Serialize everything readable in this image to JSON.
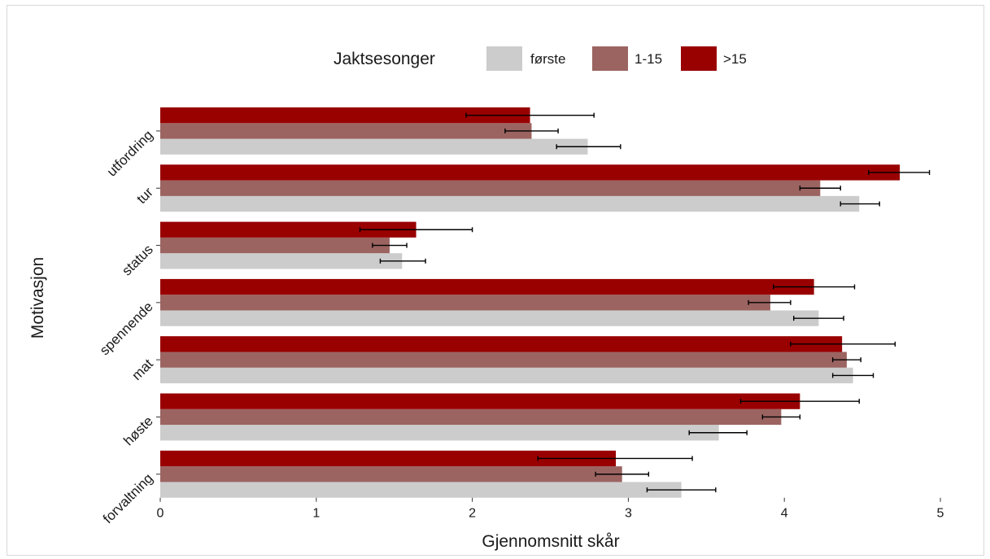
{
  "chart_data": {
    "type": "bar",
    "orientation": "horizontal",
    "xlabel": "Gjennomsnitt skår",
    "ylabel": "Motivasjon",
    "xlim": [
      0,
      5
    ],
    "xticks": [
      "0",
      "1",
      "2",
      "3",
      "4",
      "5"
    ],
    "grid": false,
    "legend": {
      "title": "Jaktsesonger",
      "placement": "top"
    },
    "categories": [
      "utfordring",
      "tur",
      "status",
      "spennende",
      "mat",
      "høste",
      "forvaltning"
    ],
    "series": [
      {
        "name": "første",
        "color": "#cccccc",
        "values": [
          2.74,
          4.48,
          1.55,
          4.22,
          4.44,
          3.58,
          3.34
        ],
        "err_low": [
          2.54,
          4.36,
          1.41,
          4.06,
          4.31,
          3.39,
          3.12
        ],
        "err_high": [
          2.95,
          4.61,
          1.7,
          4.38,
          4.57,
          3.76,
          3.56
        ]
      },
      {
        "name": "1-15",
        "color": "#9b6461",
        "values": [
          2.38,
          4.23,
          1.47,
          3.91,
          4.4,
          3.98,
          2.96
        ],
        "err_low": [
          2.21,
          4.1,
          1.36,
          3.77,
          4.31,
          3.86,
          2.79
        ],
        "err_high": [
          2.55,
          4.36,
          1.58,
          4.04,
          4.49,
          4.1,
          3.13
        ]
      },
      {
        "name": ">15",
        "color": "#990000",
        "values": [
          2.37,
          4.74,
          1.64,
          4.19,
          4.37,
          4.1,
          2.92
        ],
        "err_low": [
          1.96,
          4.54,
          1.28,
          3.93,
          4.04,
          3.72,
          2.42
        ],
        "err_high": [
          2.78,
          4.93,
          2.0,
          4.45,
          4.71,
          4.48,
          3.41
        ]
      }
    ]
  }
}
